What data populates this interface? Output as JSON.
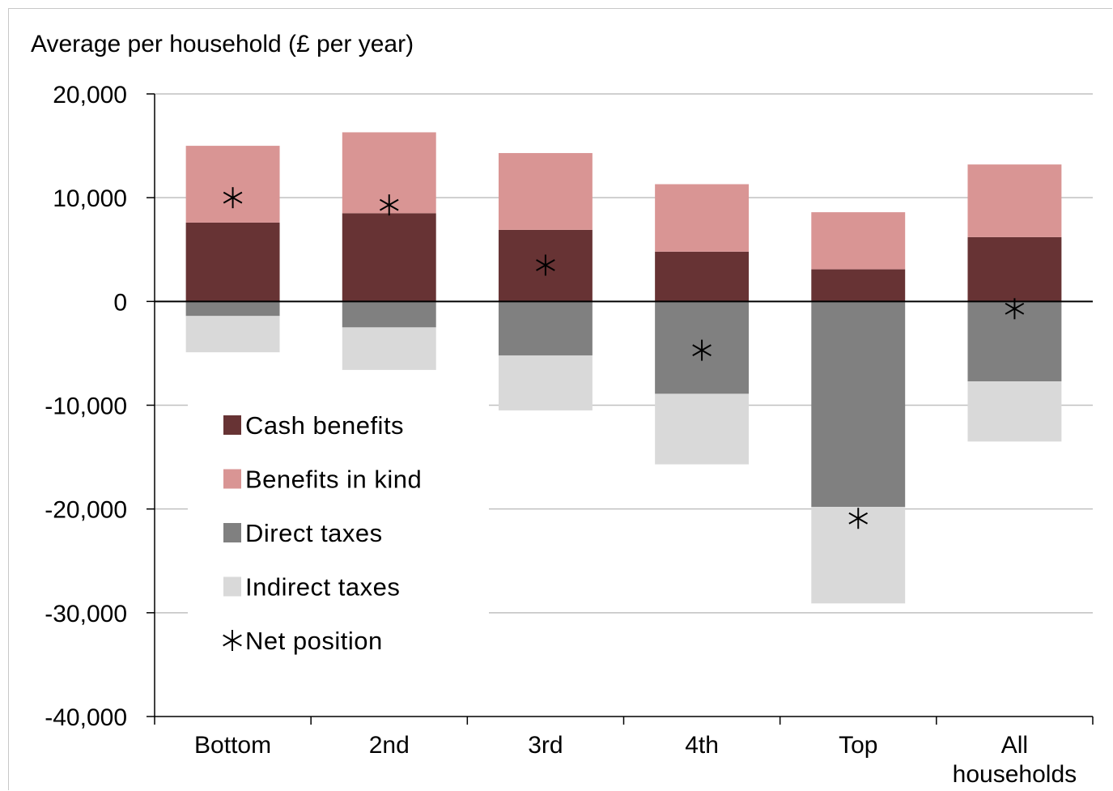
{
  "chart_data": {
    "type": "bar",
    "stacked": true,
    "ylabel": "Average per household (£ per year)",
    "ylim": [
      -40000,
      20000
    ],
    "yticks": [
      20000,
      10000,
      0,
      -10000,
      -20000,
      -30000,
      -40000
    ],
    "ytick_labels": [
      "20,000",
      "10,000",
      "0",
      "-10,000",
      "-20,000",
      "-30,000",
      "-40,000"
    ],
    "categories": [
      "Bottom",
      "2nd",
      "3rd",
      "4th",
      "Top",
      "All households"
    ],
    "category_label_lines": [
      [
        "Bottom"
      ],
      [
        "2nd"
      ],
      [
        "3rd"
      ],
      [
        "4th"
      ],
      [
        "Top"
      ],
      [
        "All",
        "households"
      ]
    ],
    "grid": true,
    "legend_position": "lower-left",
    "series": [
      {
        "name": "Cash benefits",
        "color": "#673334",
        "values": [
          7600,
          8500,
          6900,
          4800,
          3100,
          6200
        ]
      },
      {
        "name": "Benefits in kind",
        "color": "#d99594",
        "values": [
          7400,
          7800,
          7400,
          6500,
          5500,
          7000
        ]
      },
      {
        "name": "Direct taxes",
        "color": "#808080",
        "values": [
          -1400,
          -2500,
          -5200,
          -8900,
          -19800,
          -7700
        ]
      },
      {
        "name": "Indirect taxes",
        "color": "#d9d9d9",
        "values": [
          -3500,
          -4100,
          -5300,
          -6800,
          -9300,
          -5800
        ]
      }
    ],
    "net_position": {
      "name": "Net position",
      "marker": "asterisk",
      "values": [
        10000,
        9300,
        3500,
        -4700,
        -20900,
        -700
      ]
    }
  }
}
